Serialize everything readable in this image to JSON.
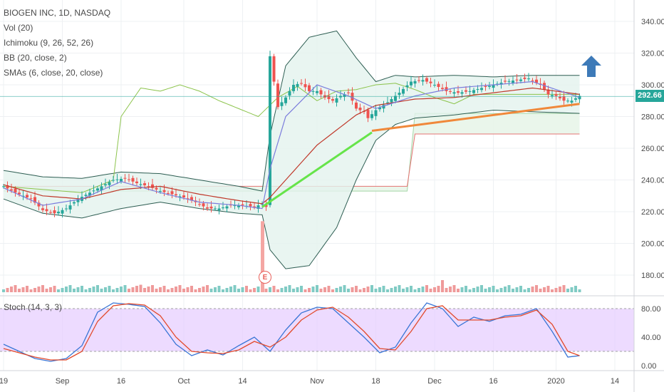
{
  "header": {
    "symbol_line": "BIOGEN INC, 1D, NASDAQ",
    "indicators": [
      "Vol (20)",
      "Ichimoku (9, 26, 52, 26)",
      "BB (20, close, 2)",
      "SMAs (6, close, 20, close)"
    ]
  },
  "current_price": "292.66",
  "earnings_marker": "E",
  "stoch_label": "Stoch (14, 3, 3)",
  "colors": {
    "up": "#26a69a",
    "down": "#ef5350",
    "bb": "#2d5d52",
    "bb_fill": "#e3f2ed",
    "sma_fast": "#7b7ddc",
    "sma_slow": "#c0392b",
    "trend_green": "#66e44a",
    "trend_orange": "#f0883a",
    "arrow": "#3d7ab8",
    "stoch_k": "#3a76d6",
    "stoch_d": "#e24a2c",
    "stoch_band": "#e6ccff"
  },
  "chart_data": [
    {
      "type": "candlestick",
      "title": "BIOGEN INC, 1D, NASDAQ",
      "ylim": [
        164,
        350
      ],
      "y_ticks": [
        "340.00",
        "320.00",
        "300.00",
        "280.00",
        "260.00",
        "240.00",
        "220.00",
        "200.00",
        "180.00"
      ],
      "y_tick_values": [
        340,
        320,
        300,
        280,
        260,
        240,
        220,
        200,
        180
      ],
      "x_tick_labels": [
        "19",
        "Sep",
        "16",
        "Oct",
        "14",
        "Nov",
        "18",
        "Dec",
        "16",
        "2020",
        "14"
      ],
      "x_tick_index": [
        0,
        15,
        30,
        46,
        61,
        80,
        95,
        110,
        125,
        141,
        156
      ],
      "bars": 148,
      "price_anchors": {
        "index": [
          0,
          3,
          7,
          10,
          13,
          16,
          19,
          22,
          25,
          28,
          31,
          34,
          37,
          40,
          43,
          46,
          49,
          52,
          55,
          58,
          61,
          64,
          66,
          67,
          68,
          70,
          72,
          74,
          76,
          78,
          80,
          82,
          84,
          86,
          88,
          90,
          92,
          93,
          95,
          98,
          101,
          104,
          107,
          110,
          113,
          116,
          119,
          122,
          125,
          128,
          131,
          134,
          137,
          139,
          141,
          143,
          145,
          147
        ],
        "close": [
          236,
          232,
          228,
          221,
          219,
          222,
          228,
          232,
          236,
          240,
          241,
          238,
          236,
          233,
          231,
          229,
          226,
          222,
          222,
          224,
          224,
          223,
          225,
          223,
          318,
          286,
          292,
          300,
          301,
          296,
          296,
          292,
          290,
          293,
          295,
          285,
          283,
          279,
          284,
          289,
          295,
          302,
          303,
          300,
          296,
          295,
          296,
          298,
          300,
          302,
          303,
          304,
          300,
          294,
          293,
          290,
          290,
          293
        ]
      },
      "sma6_anchors": {
        "index": [
          0,
          10,
          20,
          30,
          40,
          50,
          60,
          66,
          68,
          72,
          80,
          88,
          95,
          105,
          115,
          125,
          135,
          147
        ],
        "value": [
          235,
          224,
          228,
          239,
          232,
          226,
          224,
          222,
          247,
          280,
          300,
          293,
          285,
          293,
          298,
          300,
          302,
          292
        ]
      },
      "sma20_anchors": {
        "index": [
          0,
          10,
          20,
          30,
          40,
          50,
          60,
          66,
          68,
          80,
          90,
          95,
          105,
          115,
          125,
          135,
          147
        ],
        "value": [
          237,
          230,
          228,
          234,
          236,
          231,
          227,
          225,
          229,
          262,
          281,
          287,
          291,
          292,
          295,
          298,
          294
        ]
      },
      "bb_upper": {
        "index": [
          0,
          10,
          20,
          30,
          40,
          50,
          60,
          66,
          68,
          72,
          78,
          85,
          90,
          95,
          100,
          105,
          115,
          125,
          135,
          147
        ],
        "value": [
          246,
          242,
          241,
          245,
          244,
          240,
          236,
          233,
          268,
          312,
          330,
          334,
          317,
          302,
          306,
          305,
          306,
          305,
          306,
          306
        ]
      },
      "bb_lower": {
        "index": [
          0,
          10,
          20,
          30,
          40,
          50,
          60,
          66,
          68,
          72,
          78,
          85,
          90,
          95,
          100,
          105,
          115,
          125,
          135,
          147
        ],
        "value": [
          228,
          219,
          216,
          222,
          226,
          222,
          219,
          218,
          196,
          184,
          186,
          210,
          240,
          265,
          275,
          279,
          281,
          284,
          283,
          282
        ]
      },
      "ichimoku_lagging": {
        "index": [
          0,
          20,
          28,
          30,
          35,
          40,
          45,
          50,
          55,
          60,
          65,
          70,
          75,
          80,
          85,
          90,
          95,
          100,
          105,
          110,
          115,
          120
        ],
        "value": [
          236,
          232,
          240,
          280,
          298,
          296,
          300,
          296,
          290,
          285,
          280,
          292,
          299,
          290,
          296,
          297,
          300,
          301,
          297,
          292,
          288,
          294
        ]
      },
      "cloud_span_a": {
        "index": [
          0,
          66,
          68,
          103,
          105,
          147
        ],
        "value": [
          233,
          233,
          233,
          233,
          282,
          282
        ]
      },
      "cloud_span_b": {
        "index": [
          0,
          66,
          68,
          103,
          105,
          147
        ],
        "value": [
          236,
          236,
          236,
          236,
          269,
          269
        ]
      },
      "trendlines": [
        {
          "name": "green",
          "from": [
            66,
            223
          ],
          "to": [
            94,
            270
          ]
        },
        {
          "name": "orange",
          "from": [
            94,
            271
          ],
          "to": [
            147,
            288
          ]
        }
      ],
      "volume_spikes": {
        "index": [
          66,
          112,
          35
        ],
        "relative": [
          1.0,
          0.5,
          0.25
        ]
      }
    },
    {
      "type": "line",
      "title": "Stoch (14, 3, 3)",
      "ylim": [
        -5,
        92
      ],
      "y_ticks": [
        "80.00",
        "40.00",
        "0.00"
      ],
      "y_tick_values": [
        80,
        40,
        0
      ],
      "band": [
        20,
        80
      ],
      "series": [
        {
          "name": "%K",
          "index": [
            0,
            4,
            8,
            12,
            16,
            20,
            24,
            28,
            32,
            36,
            40,
            44,
            48,
            52,
            56,
            60,
            64,
            68,
            72,
            76,
            80,
            84,
            88,
            92,
            96,
            100,
            104,
            108,
            112,
            116,
            120,
            124,
            128,
            132,
            136,
            140,
            144,
            147
          ],
          "values": [
            30,
            20,
            10,
            6,
            10,
            28,
            75,
            88,
            86,
            83,
            60,
            30,
            14,
            22,
            15,
            28,
            40,
            20,
            50,
            74,
            82,
            80,
            60,
            40,
            18,
            26,
            60,
            88,
            80,
            55,
            68,
            62,
            70,
            72,
            80,
            48,
            12,
            14
          ]
        },
        {
          "name": "%D",
          "index": [
            0,
            4,
            8,
            12,
            16,
            20,
            24,
            28,
            32,
            36,
            40,
            44,
            48,
            52,
            56,
            60,
            64,
            68,
            72,
            76,
            80,
            84,
            88,
            92,
            96,
            100,
            104,
            108,
            112,
            116,
            120,
            124,
            128,
            132,
            136,
            140,
            144,
            147
          ],
          "values": [
            24,
            18,
            12,
            8,
            8,
            20,
            62,
            84,
            87,
            85,
            70,
            40,
            20,
            18,
            17,
            22,
            34,
            26,
            40,
            64,
            78,
            82,
            68,
            48,
            24,
            22,
            48,
            80,
            84,
            64,
            64,
            64,
            68,
            70,
            78,
            58,
            20,
            14
          ]
        }
      ]
    }
  ]
}
